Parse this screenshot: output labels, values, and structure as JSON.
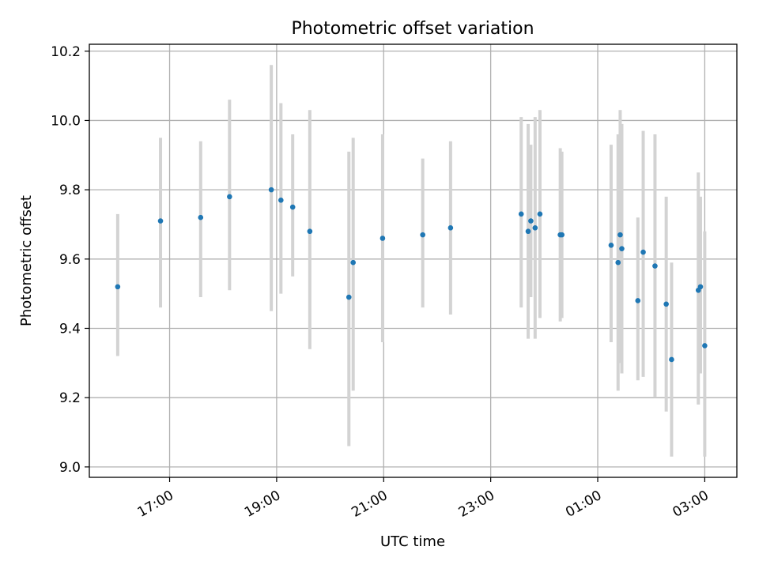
{
  "chart_data": {
    "type": "scatter",
    "title": "Photometric offset variation",
    "xlabel": "UTC time",
    "ylabel": "Photometric offset",
    "x_unit": "hours since 00:00 UTC of the first date",
    "xlim": [
      15.5,
      27.6
    ],
    "ylim": [
      8.97,
      10.22
    ],
    "x_ticks": [
      {
        "value": 17,
        "label": "17:00"
      },
      {
        "value": 19,
        "label": "19:00"
      },
      {
        "value": 21,
        "label": "21:00"
      },
      {
        "value": 23,
        "label": "23:00"
      },
      {
        "value": 25,
        "label": "01:00"
      },
      {
        "value": 27,
        "label": "03:00"
      }
    ],
    "y_ticks": [
      {
        "value": 9.0,
        "label": "9.0"
      },
      {
        "value": 9.2,
        "label": "9.2"
      },
      {
        "value": 9.4,
        "label": "9.4"
      },
      {
        "value": 9.6,
        "label": "9.6"
      },
      {
        "value": 9.8,
        "label": "9.8"
      },
      {
        "value": 10.0,
        "label": "10.0"
      },
      {
        "value": 10.2,
        "label": "10.2"
      }
    ],
    "grid": true,
    "legend": "none",
    "colors": {
      "point": "#1f77b4",
      "errorbar": "#d3d3d3"
    },
    "points": [
      {
        "x": 16.03,
        "y": 9.52,
        "ylow": 9.32,
        "yhigh": 9.73
      },
      {
        "x": 16.83,
        "y": 9.71,
        "ylow": 9.46,
        "yhigh": 9.95
      },
      {
        "x": 17.58,
        "y": 9.72,
        "ylow": 9.49,
        "yhigh": 9.94
      },
      {
        "x": 18.12,
        "y": 9.78,
        "ylow": 9.51,
        "yhigh": 10.06
      },
      {
        "x": 18.9,
        "y": 9.8,
        "ylow": 9.45,
        "yhigh": 10.16
      },
      {
        "x": 19.08,
        "y": 9.77,
        "ylow": 9.5,
        "yhigh": 10.05
      },
      {
        "x": 19.3,
        "y": 9.75,
        "ylow": 9.55,
        "yhigh": 9.96
      },
      {
        "x": 19.62,
        "y": 9.68,
        "ylow": 9.34,
        "yhigh": 10.03
      },
      {
        "x": 20.35,
        "y": 9.49,
        "ylow": 9.06,
        "yhigh": 9.91
      },
      {
        "x": 20.43,
        "y": 9.59,
        "ylow": 9.22,
        "yhigh": 9.95
      },
      {
        "x": 20.98,
        "y": 9.66,
        "ylow": 9.36,
        "yhigh": 9.96
      },
      {
        "x": 21.73,
        "y": 9.67,
        "ylow": 9.46,
        "yhigh": 9.89
      },
      {
        "x": 22.25,
        "y": 9.69,
        "ylow": 9.44,
        "yhigh": 9.94
      },
      {
        "x": 23.57,
        "y": 9.73,
        "ylow": 9.46,
        "yhigh": 10.01
      },
      {
        "x": 23.7,
        "y": 9.68,
        "ylow": 9.37,
        "yhigh": 9.99
      },
      {
        "x": 23.75,
        "y": 9.71,
        "ylow": 9.49,
        "yhigh": 9.93
      },
      {
        "x": 23.83,
        "y": 9.69,
        "ylow": 9.37,
        "yhigh": 10.01
      },
      {
        "x": 23.92,
        "y": 9.73,
        "ylow": 9.43,
        "yhigh": 10.03
      },
      {
        "x": 24.3,
        "y": 9.67,
        "ylow": 9.42,
        "yhigh": 9.92
      },
      {
        "x": 24.33,
        "y": 9.67,
        "ylow": 9.43,
        "yhigh": 9.91
      },
      {
        "x": 25.25,
        "y": 9.64,
        "ylow": 9.36,
        "yhigh": 9.93
      },
      {
        "x": 25.38,
        "y": 9.59,
        "ylow": 9.22,
        "yhigh": 9.96
      },
      {
        "x": 25.42,
        "y": 9.67,
        "ylow": 9.3,
        "yhigh": 10.03
      },
      {
        "x": 25.45,
        "y": 9.63,
        "ylow": 9.27,
        "yhigh": 9.99
      },
      {
        "x": 25.75,
        "y": 9.48,
        "ylow": 9.25,
        "yhigh": 9.72
      },
      {
        "x": 25.85,
        "y": 9.62,
        "ylow": 9.26,
        "yhigh": 9.97
      },
      {
        "x": 26.07,
        "y": 9.58,
        "ylow": 9.2,
        "yhigh": 9.96
      },
      {
        "x": 26.28,
        "y": 9.47,
        "ylow": 9.16,
        "yhigh": 9.78
      },
      {
        "x": 26.38,
        "y": 9.31,
        "ylow": 9.03,
        "yhigh": 9.59
      },
      {
        "x": 26.88,
        "y": 9.51,
        "ylow": 9.18,
        "yhigh": 9.85
      },
      {
        "x": 26.92,
        "y": 9.52,
        "ylow": 9.27,
        "yhigh": 9.78
      },
      {
        "x": 27.0,
        "y": 9.35,
        "ylow": 9.03,
        "yhigh": 9.68
      }
    ]
  }
}
